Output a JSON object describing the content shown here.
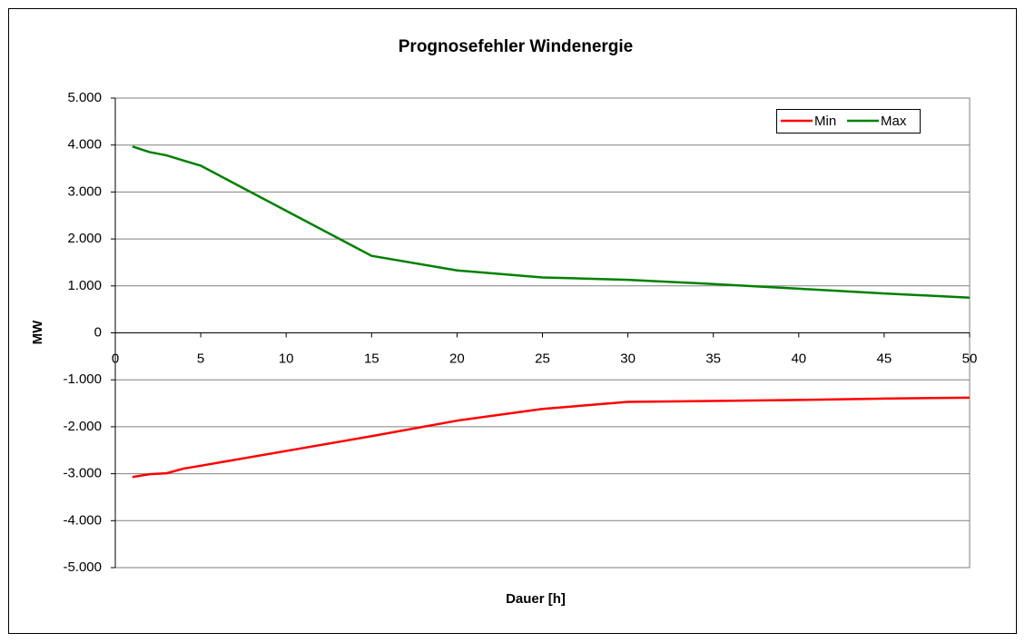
{
  "chart_data": {
    "type": "line",
    "title": "Prognosefehler Windenergie",
    "x_label": "Dauer [h]",
    "y_label": "MW",
    "x": [
      1,
      2,
      3,
      4,
      5,
      15,
      20,
      25,
      30,
      35,
      40,
      45,
      50
    ],
    "series": [
      {
        "name": "Min",
        "color": "#ff0000",
        "values": [
          -3070,
          -3010,
          -2990,
          -2890,
          -2830,
          -2200,
          -1870,
          -1620,
          -1470,
          -1450,
          -1430,
          -1400,
          -1380
        ]
      },
      {
        "name": "Max",
        "color": "#008000",
        "values": [
          3970,
          3850,
          3780,
          3670,
          3560,
          1640,
          1330,
          1180,
          1130,
          1040,
          940,
          840,
          750
        ]
      }
    ],
    "xlim": [
      0,
      50
    ],
    "xticks": [
      0,
      5,
      10,
      15,
      20,
      25,
      30,
      35,
      40,
      45,
      50
    ],
    "ylim": [
      -5000,
      5000
    ],
    "yticks": [
      {
        "value": -5000,
        "label": "-5.000"
      },
      {
        "value": -4000,
        "label": "-4.000"
      },
      {
        "value": -3000,
        "label": "-3.000"
      },
      {
        "value": -2000,
        "label": "-2.000"
      },
      {
        "value": -1000,
        "label": "-1.000"
      },
      0,
      {
        "value": 1000,
        "label": "1.000"
      },
      {
        "value": 2000,
        "label": "2.000"
      },
      {
        "value": 3000,
        "label": "3.000"
      },
      {
        "value": 4000,
        "label": "4.000"
      },
      {
        "value": 5000,
        "label": "5.000"
      }
    ],
    "grid": true,
    "legend": "top-right"
  }
}
